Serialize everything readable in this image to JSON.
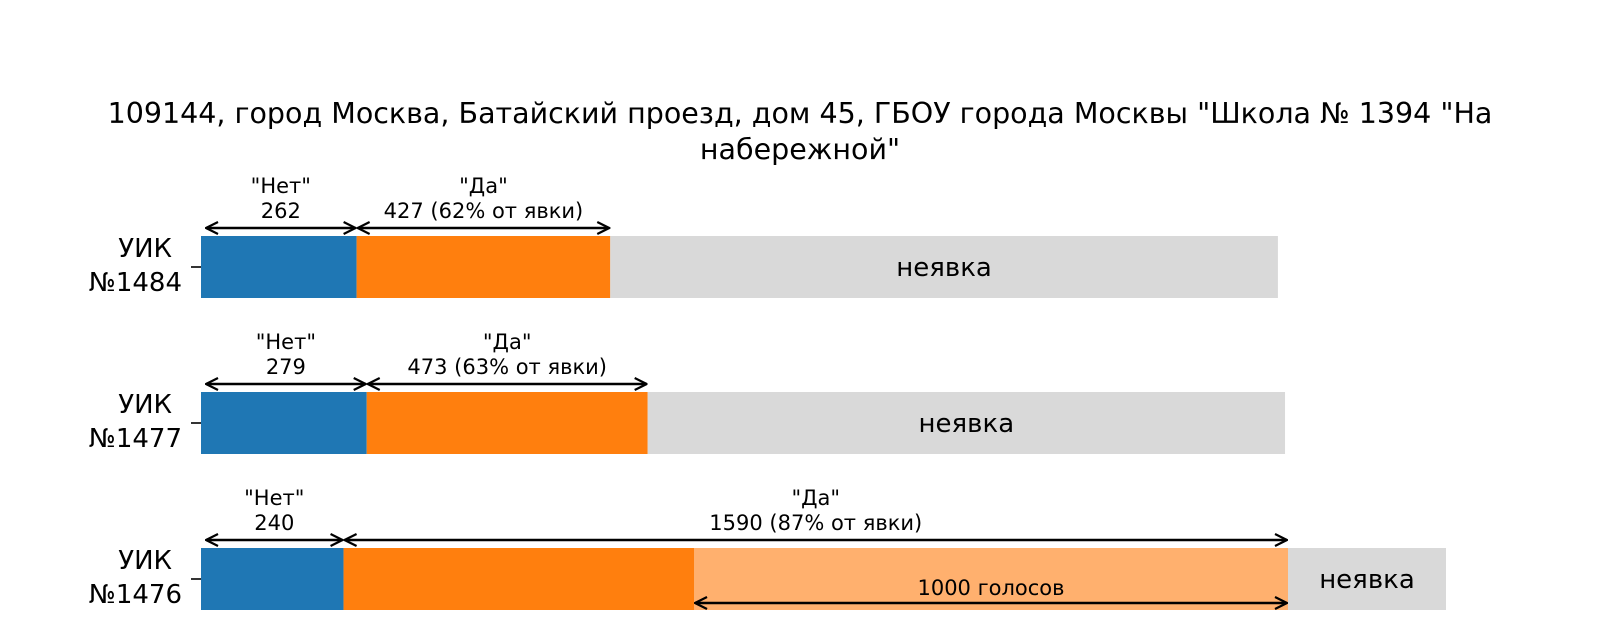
{
  "chart_data": {
    "type": "bar",
    "orientation": "horizontal",
    "stacked": true,
    "title": "109144, город Москва, Батайский проезд, дом 45, ГБОУ города Москвы \"Школа № 1394 \"На набережной\"",
    "grid": false,
    "legend": "none",
    "categories": [
      "УИК №1484",
      "УИК №1477",
      "УИК №1476"
    ],
    "series": [
      {
        "name": "\"Нет\"",
        "values": [
          262,
          279,
          240
        ],
        "color": "#1f77b4"
      },
      {
        "name": "\"Да\"",
        "values": [
          427,
          473,
          1590
        ],
        "color": "#ff7f0e"
      },
      {
        "name": "неявка",
        "values": [
          1124,
          1073,
          266
        ],
        "color": "#d9d9d9"
      }
    ],
    "highlight": {
      "category": "УИК №1476",
      "value": 1000,
      "color": "#ffb06e",
      "label": "1000 голосов"
    },
    "annotations": {
      "no": [
        "\"Нет\"\n262",
        "\"Нет\"\n279",
        "\"Нет\"\n240"
      ],
      "yes": [
        "\"Да\"\n427 (62% от явки)",
        "\"Да\"\n473 (63% от явки)",
        "\"Да\"\n1590 (87% от явки)"
      ],
      "absent": [
        "неявка",
        "неявка",
        "неявка"
      ]
    }
  }
}
